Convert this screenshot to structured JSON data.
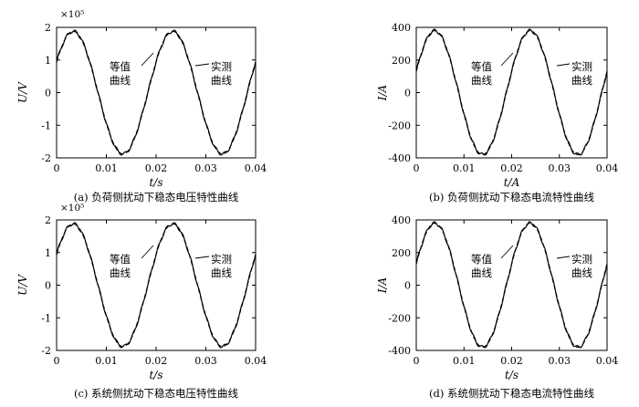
{
  "chart_data": [
    {
      "type": "line",
      "panel": "a",
      "caption": "(a) 负荷侧扰动下稳态电压特性曲线",
      "xlabel": "t/s",
      "ylabel": "U/V",
      "multiplier": "×10⁵",
      "xlim": [
        0,
        0.04
      ],
      "ylim": [
        -2,
        2
      ],
      "xticks": [
        "0",
        "0.01",
        "0.02",
        "0.03",
        "0.04"
      ],
      "yticks": [
        "2",
        "1",
        "0",
        "-1",
        "-2"
      ],
      "ytick_values": [
        2,
        1,
        0,
        -1,
        -2
      ],
      "series": [
        {
          "name": "等值曲线",
          "style": "dashed",
          "amplitude": 1.88,
          "frequency_hz": 50,
          "phase_deg": 30
        },
        {
          "name": "实测曲线",
          "style": "solid",
          "amplitude": 1.88,
          "frequency_hz": 50,
          "phase_deg": 30
        }
      ],
      "annotations": [
        {
          "lines": [
            "等值",
            "曲线"
          ],
          "target_series": "等值曲线"
        },
        {
          "lines": [
            "实测",
            "曲线"
          ],
          "target_series": "实测曲线"
        }
      ]
    },
    {
      "type": "line",
      "panel": "b",
      "caption": "(b) 负荷侧扰动下稳态电流特性曲线",
      "xlabel": "t/A",
      "ylabel": "I/A",
      "multiplier": "",
      "xlim": [
        0,
        0.04
      ],
      "ylim": [
        -400,
        400
      ],
      "xticks": [
        "0",
        "0.01",
        "0.02",
        "0.03",
        "0.04"
      ],
      "yticks": [
        "400",
        "200",
        "0",
        "-200",
        "-400"
      ],
      "ytick_values": [
        400,
        200,
        0,
        -200,
        -400
      ],
      "series": [
        {
          "name": "等值曲线",
          "style": "dashed",
          "amplitude": 380,
          "frequency_hz": 50,
          "phase_deg": 20
        },
        {
          "name": "实测曲线",
          "style": "solid",
          "amplitude": 380,
          "frequency_hz": 50,
          "phase_deg": 20
        }
      ],
      "annotations": [
        {
          "lines": [
            "等值",
            "曲线"
          ],
          "target_series": "等值曲线"
        },
        {
          "lines": [
            "实测",
            "曲线"
          ],
          "target_series": "实测曲线"
        }
      ]
    },
    {
      "type": "line",
      "panel": "c",
      "caption": "(c) 系统侧扰动下稳态电压特性曲线",
      "xlabel": "t/s",
      "ylabel": "U/V",
      "multiplier": "×10⁵",
      "xlim": [
        0,
        0.04
      ],
      "ylim": [
        -2,
        2
      ],
      "xticks": [
        "0",
        "0.01",
        "0.02",
        "0.03",
        "0.04"
      ],
      "yticks": [
        "2",
        "1",
        "0",
        "-1",
        "-2"
      ],
      "ytick_values": [
        2,
        1,
        0,
        -1,
        -2
      ],
      "series": [
        {
          "name": "等值曲线",
          "style": "dashed",
          "amplitude": 1.88,
          "frequency_hz": 50,
          "phase_deg": 30
        },
        {
          "name": "实测曲线",
          "style": "solid",
          "amplitude": 1.88,
          "frequency_hz": 50,
          "phase_deg": 30
        }
      ],
      "annotations": [
        {
          "lines": [
            "等值",
            "曲线"
          ],
          "target_series": "等值曲线"
        },
        {
          "lines": [
            "实测",
            "曲线"
          ],
          "target_series": "实测曲线"
        }
      ]
    },
    {
      "type": "line",
      "panel": "d",
      "caption": "(d) 系统侧扰动下稳态电流特性曲线",
      "xlabel": "t/s",
      "ylabel": "I/A",
      "multiplier": "",
      "xlim": [
        0,
        0.04
      ],
      "ylim": [
        -400,
        400
      ],
      "xticks": [
        "0",
        "0.01",
        "0.02",
        "0.03",
        "0.04"
      ],
      "yticks": [
        "400",
        "200",
        "0",
        "-200",
        "-400"
      ],
      "ytick_values": [
        400,
        200,
        0,
        -200,
        -400
      ],
      "series": [
        {
          "name": "等值曲线",
          "style": "dashed",
          "amplitude": 380,
          "frequency_hz": 50,
          "phase_deg": 20
        },
        {
          "name": "实测曲线",
          "style": "solid",
          "amplitude": 380,
          "frequency_hz": 50,
          "phase_deg": 20
        }
      ],
      "annotations": [
        {
          "lines": [
            "等值",
            "曲线"
          ],
          "target_series": "等值曲线"
        },
        {
          "lines": [
            "实测",
            "曲线"
          ],
          "target_series": "实测曲线"
        }
      ]
    }
  ]
}
